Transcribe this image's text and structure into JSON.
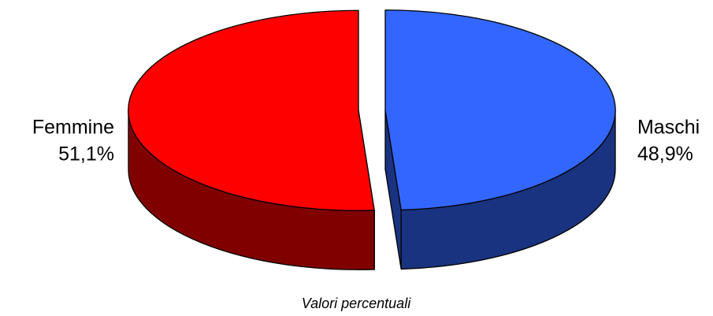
{
  "chart_data": {
    "type": "pie",
    "subtitle": "Valori percentuali",
    "categories": [
      "Maschi",
      "Femmine"
    ],
    "values": [
      48.9,
      51.1
    ],
    "value_labels": [
      "48,9%",
      "51,1%"
    ],
    "colors": [
      "#3366ff",
      "#ff0000"
    ]
  }
}
